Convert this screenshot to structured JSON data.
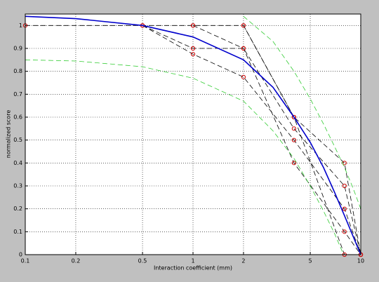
{
  "chart_data": {
    "type": "line",
    "xlabel": "Interaction coefficient (mm)",
    "ylabel": "normalized score",
    "xscale": "log",
    "xlim": [
      0.1,
      10
    ],
    "xticks": [
      0.1,
      0.2,
      0.5,
      1,
      2,
      5,
      10
    ],
    "ylim": [
      0,
      1.05
    ],
    "yticks": [
      0,
      0.1,
      0.2,
      0.3,
      0.4,
      0.5,
      0.6,
      0.7,
      0.8,
      0.9,
      1
    ],
    "grid": true,
    "series": [
      {
        "color": "#000000",
        "linestyle": "--",
        "marker": "o",
        "marker_color": "#cc0000",
        "x": [
          0.1,
          0.5,
          1,
          2,
          4,
          8,
          10
        ],
        "values": [
          1,
          1,
          1,
          1,
          0.6,
          0.4,
          0
        ]
      },
      {
        "color": "#000000",
        "linestyle": "--",
        "marker": "o",
        "marker_color": "#cc0000",
        "x": [
          0.5,
          1,
          2,
          4,
          8,
          10
        ],
        "values": [
          1,
          0.9,
          0.9,
          0.55,
          0.3,
          0
        ]
      },
      {
        "color": "#000000",
        "linestyle": "--",
        "marker": "o",
        "marker_color": "#cc0000",
        "x": [
          0.5,
          1,
          2,
          4,
          8,
          10
        ],
        "values": [
          1,
          0.875,
          0.775,
          0.5,
          0.2,
          0
        ]
      },
      {
        "color": "#000000",
        "linestyle": "--",
        "marker": "o",
        "marker_color": "#cc0000",
        "x": [
          1,
          2,
          4,
          8,
          10
        ],
        "values": [
          1,
          0.9,
          0.4,
          0.1,
          0
        ]
      },
      {
        "color": "#000000",
        "linestyle": "--",
        "marker": "o",
        "marker_color": "#cc0000",
        "x": [
          2,
          4,
          8,
          10
        ],
        "values": [
          1,
          0.6,
          0,
          0
        ]
      },
      {
        "color": "#0000cc",
        "linestyle": "-",
        "x": [
          0.1,
          0.2,
          0.5,
          1,
          2,
          3,
          4,
          5,
          6,
          7,
          8,
          9,
          10
        ],
        "values": [
          1.04,
          1.03,
          1.0,
          0.95,
          0.85,
          0.73,
          0.6,
          0.49,
          0.38,
          0.27,
          0.17,
          0.08,
          0
        ]
      },
      {
        "color": "#33cc33",
        "linestyle": "--",
        "x": [
          2,
          3,
          4,
          5,
          6,
          7,
          8,
          9,
          10
        ],
        "values": [
          1.04,
          0.93,
          0.8,
          0.68,
          0.57,
          0.47,
          0.38,
          0.29,
          0.2
        ]
      },
      {
        "color": "#33cc33",
        "linestyle": "--",
        "x": [
          0.1,
          0.2,
          0.5,
          1,
          2,
          3,
          4,
          5,
          6,
          7,
          7.9
        ],
        "values": [
          0.85,
          0.845,
          0.82,
          0.77,
          0.67,
          0.54,
          0.42,
          0.3,
          0.19,
          0.09,
          0
        ]
      }
    ]
  }
}
